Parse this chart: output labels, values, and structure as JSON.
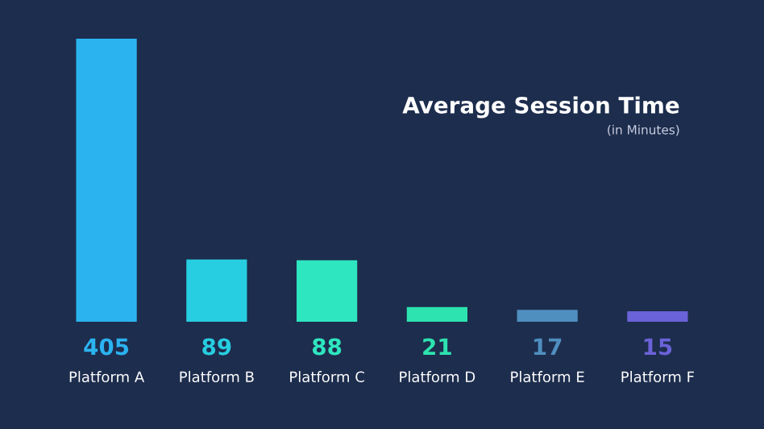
{
  "chart_data": {
    "type": "bar",
    "title": "Average Session Time",
    "subtitle": "(in Minutes)",
    "categories": [
      "Platform A",
      "Platform B",
      "Platform C",
      "Platform D",
      "Platform E",
      "Platform F"
    ],
    "values": [
      405,
      89,
      88,
      21,
      17,
      15
    ],
    "data_labels": true,
    "colors": [
      "#2bb3f0",
      "#27cde0",
      "#2ee6c0",
      "#2de3b0",
      "#4f8fc0",
      "#6a62d8"
    ]
  }
}
